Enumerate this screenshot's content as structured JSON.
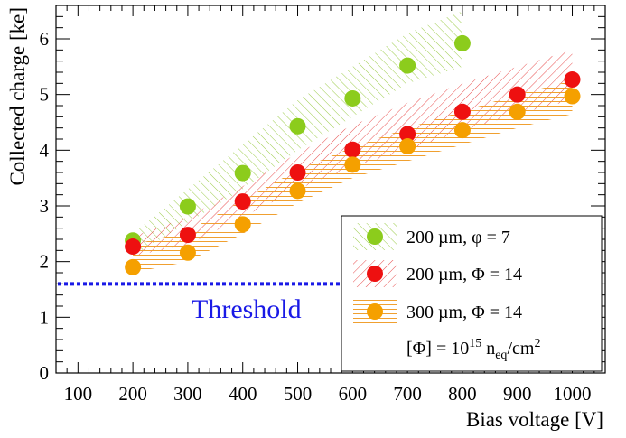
{
  "chart_data": {
    "type": "scatter",
    "xlabel": "Bias voltage [V]",
    "ylabel": "Collected charge [ke]",
    "xlim": [
      60,
      1060
    ],
    "ylim": [
      0,
      6.6
    ],
    "xticks": [
      "100",
      "200",
      "300",
      "400",
      "500",
      "600",
      "700",
      "800",
      "900",
      "1000"
    ],
    "xtick_values": [
      100,
      200,
      300,
      400,
      500,
      600,
      700,
      800,
      900,
      1000
    ],
    "yticks": [
      "0",
      "1",
      "2",
      "3",
      "4",
      "5",
      "6"
    ],
    "ytick_values": [
      0,
      1,
      2,
      3,
      4,
      5,
      6
    ],
    "threshold": {
      "label": "Threshold",
      "value": 1.6,
      "color": "#1a1ae6"
    },
    "series": [
      {
        "name": "200 µm, φ = 7",
        "color": "#8ccc1c",
        "band_color": "#9ccc4a",
        "x": [
          200,
          300,
          400,
          500,
          600,
          700,
          800
        ],
        "y": [
          2.38,
          2.99,
          3.59,
          4.43,
          4.93,
          5.52,
          5.92
        ],
        "band_low": [
          2.1,
          2.7,
          3.3,
          4.0,
          4.6,
          5.2,
          5.5
        ],
        "band_high": [
          2.5,
          3.3,
          4.1,
          4.9,
          5.5,
          6.1,
          6.5
        ]
      },
      {
        "name": "200 µm, Φ = 14",
        "color": "#ee1010",
        "band_color": "#e85050",
        "x": [
          200,
          300,
          400,
          500,
          600,
          700,
          800,
          900,
          1000
        ],
        "y": [
          2.27,
          2.48,
          3.08,
          3.6,
          4.01,
          4.29,
          4.69,
          5.0,
          5.27
        ],
        "band_low": [
          2.1,
          2.3,
          2.8,
          3.3,
          3.7,
          4.0,
          4.35,
          4.65,
          4.9
        ],
        "band_high": [
          2.45,
          2.8,
          3.35,
          3.95,
          4.45,
          4.85,
          5.2,
          5.5,
          5.8
        ]
      },
      {
        "name": "300 µm, Φ = 14",
        "color": "#f5a000",
        "band_color": "#f0a030",
        "x": [
          200,
          300,
          400,
          500,
          600,
          700,
          800,
          900,
          1000
        ],
        "y": [
          1.9,
          2.16,
          2.67,
          3.27,
          3.74,
          4.07,
          4.36,
          4.69,
          4.97
        ],
        "band_low": [
          1.8,
          2.0,
          2.5,
          3.05,
          3.5,
          3.8,
          4.1,
          4.4,
          4.65
        ],
        "band_high": [
          2.3,
          2.55,
          3.1,
          3.65,
          4.05,
          4.4,
          4.7,
          5.0,
          5.25
        ]
      }
    ],
    "legend": {
      "position": "bottom-right",
      "entries": [
        "200 µm, φ = 7",
        "200 µm, Φ = 14",
        "300 µm, Φ = 14"
      ],
      "note_prefix": "[Φ] = 10",
      "note_exp": "15",
      "note_mid": " n",
      "note_sub": "eq",
      "note_suffix": "/cm",
      "note_sup2": "2"
    }
  }
}
